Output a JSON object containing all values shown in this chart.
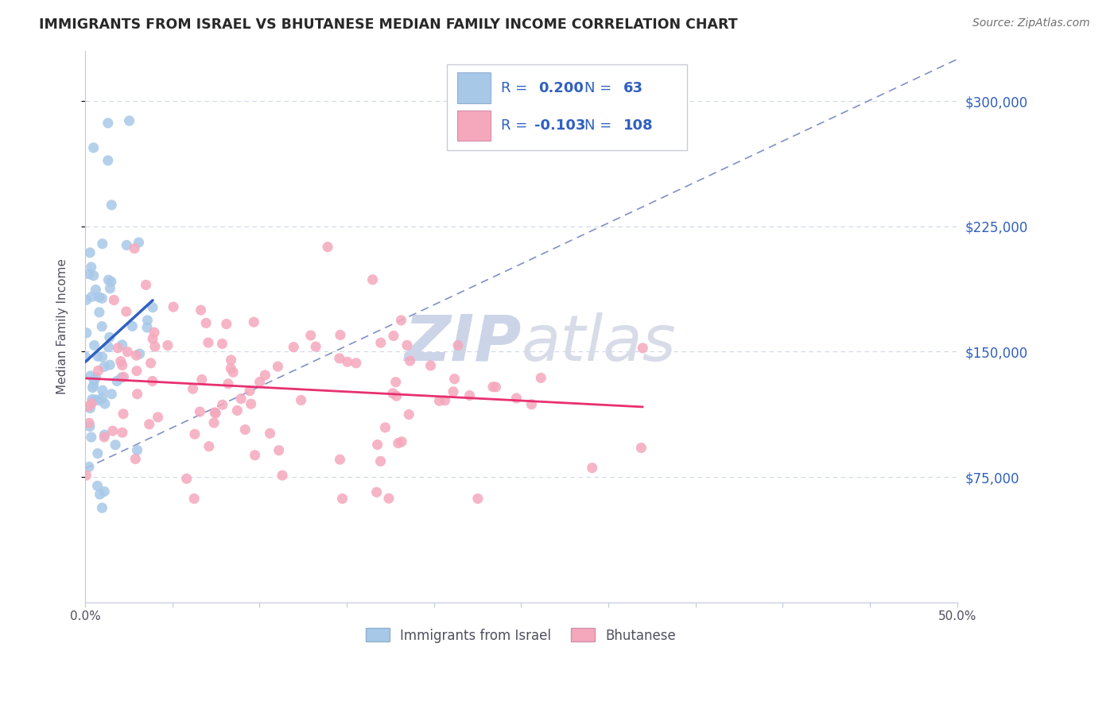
{
  "title": "IMMIGRANTS FROM ISRAEL VS BHUTANESE MEDIAN FAMILY INCOME CORRELATION CHART",
  "source": "Source: ZipAtlas.com",
  "ylabel": "Median Family Income",
  "yticks": [
    75000,
    150000,
    225000,
    300000
  ],
  "ytick_labels": [
    "$75,000",
    "$150,000",
    "$225,000",
    "$300,000"
  ],
  "legend_label_1": "Immigrants from Israel",
  "legend_label_2": "Bhutanese",
  "R1": 0.2,
  "N1": 63,
  "R2": -0.103,
  "N2": 108,
  "color_israel": "#a8c8e8",
  "color_bhutanese": "#f5a8bc",
  "line_color_israel": "#3060c0",
  "line_color_bhutanese": "#e83070",
  "dashed_line_color": "#8090c8",
  "watermark_color": "#ccd4e8",
  "background_color": "#ffffff",
  "grid_color": "#d0d8e8",
  "title_color": "#282828",
  "source_color": "#707070",
  "legend_text_color": "#282828",
  "legend_value_color": "#3060c0",
  "xlim": [
    0.0,
    0.5
  ],
  "ylim": [
    0,
    330000
  ],
  "seed": 77
}
